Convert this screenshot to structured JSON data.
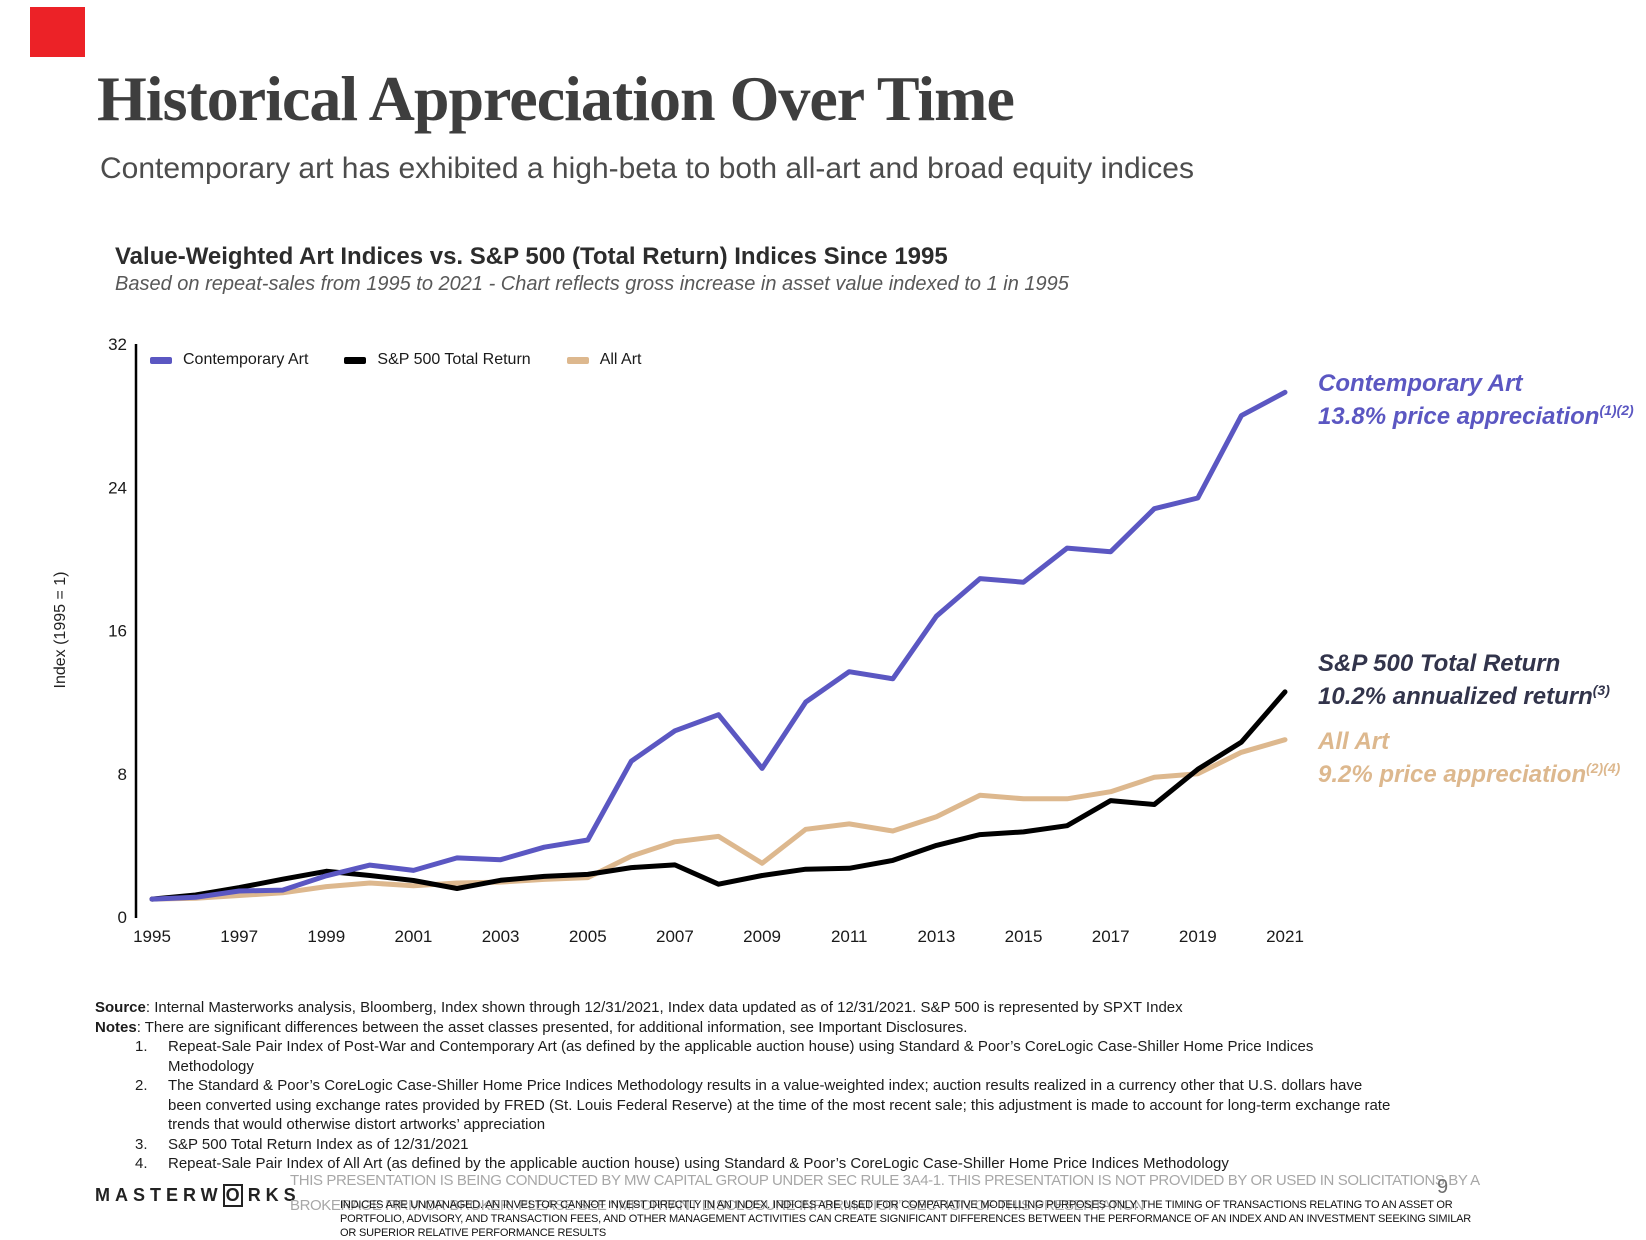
{
  "slide": {
    "title": "Historical Appreciation Over Time",
    "subtitle": "Contemporary art has exhibited a high-beta to both all-art and broad equity indices",
    "page_number": "9",
    "accent_red": "#EC2227"
  },
  "chart_header": {
    "title": "Value-Weighted Art Indices vs. S&P 500 (Total Return) Indices Since 1995",
    "subtitle": "Based on repeat-sales from 1995 to 2021 - Chart reflects gross increase in asset value indexed to 1 in 1995"
  },
  "chart_data": {
    "type": "line",
    "title": "Value-Weighted Art Indices vs. S&P 500 (Total Return) Indices Since 1995",
    "xlabel": "",
    "ylabel": "Index (1995 = 1)",
    "ylim": [
      0,
      32
    ],
    "y_ticks": [
      0,
      8,
      16,
      24,
      32
    ],
    "x_tick_years": [
      1995,
      1997,
      1999,
      2001,
      2003,
      2005,
      2007,
      2009,
      2011,
      2013,
      2015,
      2017,
      2019,
      2021
    ],
    "grid": false,
    "legend_position": "top-left",
    "x": [
      1995,
      1996,
      1997,
      1998,
      1999,
      2000,
      2001,
      2002,
      2003,
      2004,
      2005,
      2006,
      2007,
      2008,
      2009,
      2010,
      2011,
      2012,
      2013,
      2014,
      2015,
      2016,
      2017,
      2018,
      2019,
      2020,
      2021
    ],
    "series": [
      {
        "name": "Contemporary Art",
        "color": "#5B57C2",
        "values": [
          1.0,
          1.1,
          1.45,
          1.5,
          2.3,
          2.9,
          2.6,
          3.3,
          3.2,
          3.9,
          4.3,
          8.7,
          10.4,
          11.3,
          8.3,
          12.0,
          13.7,
          13.3,
          16.8,
          18.9,
          18.7,
          20.6,
          20.4,
          22.8,
          23.4,
          28.0,
          29.3
        ]
      },
      {
        "name": "S&P 500 Total Return",
        "color": "#000000",
        "values": [
          1.0,
          1.23,
          1.64,
          2.11,
          2.55,
          2.32,
          2.04,
          1.59,
          2.05,
          2.27,
          2.38,
          2.76,
          2.91,
          1.83,
          2.32,
          2.67,
          2.72,
          3.16,
          4.0,
          4.6,
          4.75,
          5.1,
          6.5,
          6.28,
          8.25,
          9.77,
          12.57
        ]
      },
      {
        "name": "All Art",
        "color": "#DDB88E",
        "values": [
          1.0,
          1.05,
          1.2,
          1.35,
          1.7,
          1.9,
          1.75,
          1.9,
          1.95,
          2.1,
          2.2,
          3.4,
          4.2,
          4.5,
          3.0,
          4.9,
          5.2,
          4.8,
          5.6,
          6.8,
          6.6,
          6.6,
          7.0,
          7.8,
          8.0,
          9.2,
          9.9
        ]
      }
    ]
  },
  "annotations": [
    {
      "line1": "Contemporary Art",
      "line2": "13.8% price appreciation",
      "sup": "(1)(2)",
      "color": "#5B57C2"
    },
    {
      "line1": "S&P 500 Total Return",
      "line2": "10.2% annualized return",
      "sup": "(3)",
      "color": "#32344B"
    },
    {
      "line1": "All Art",
      "line2": "9.2% price appreciation",
      "sup": "(2)(4)",
      "color": "#DDB88E"
    }
  ],
  "footnotes": {
    "source_label": "Source",
    "source_text": ": Internal Masterworks analysis, Bloomberg, Index shown through 12/31/2021, Index data updated as of 12/31/2021. S&P 500 is represented by SPXT Index",
    "notes_label": "Notes",
    "notes_text": ": There are significant differences between the asset classes presented, for additional information, see Important Disclosures.",
    "items": [
      {
        "num": "1.",
        "text": "Repeat-Sale Pair Index of Post-War and Contemporary Art (as defined by the applicable auction house) using Standard & Poor’s CoreLogic Case-Shiller Home Price Indices Methodology"
      },
      {
        "num": "2.",
        "text": "The Standard & Poor’s CoreLogic Case-Shiller Home Price Indices Methodology results in a value-weighted index; auction results realized in a currency other that U.S. dollars have been converted using exchange rates provided by FRED (St. Louis Federal Reserve) at the time of the most recent sale; this adjustment is made to account for long-term exchange rate trends that would otherwise distort artworks’ appreciation"
      },
      {
        "num": "3.",
        "text": "S&P 500 Total Return Index as of 12/31/2021"
      },
      {
        "num": "4.",
        "text": "Repeat-Sale Pair Index of All Art (as defined by the applicable auction house) using Standard & Poor’s CoreLogic Case-Shiller Home Price Indices Methodology"
      }
    ]
  },
  "footer": {
    "logo_pre": "MASTERW",
    "logo_o": "O",
    "logo_post": "RKS",
    "disclaimer_line1": "THIS PRESENTATION  IS BEING CONDUCTED BY MW CAPITAL GROUP UNDER SEC RULE 3A4-1. THIS PRESENTATION  IS NOT PROVIDED BY OR USED IN SOLICITATIONS BY A",
    "disclaimer_line2": "BROKERAGE FIRM OR BROKER. PLEASE SEE “IMPORTANT DISCLOSURE INFORMATION” SECTION OF THIS PRESENTATION",
    "sub_disclaimer_line1": "INDICES ARE UNMANAGED. AN INVESTOR CANNOT INVEST DIRECTLY IN AN INDEX. INDICES ARE USED FOR COMPARATIVE MODELLING PURPOSES ONLY. THE TIMING OF TRANSACTIONS RELATING TO AN ASSET OR",
    "sub_disclaimer_line2": "PORTFOLIO, ADVISORY, AND TRANSACTION FEES, AND OTHER MANAGEMENT ACTIVITIES CAN CREATE SIGNIFICANT DIFFERENCES BETWEEN THE PERFORMANCE OF AN INDEX AND AN INVESTMENT SEEKING SIMILAR",
    "sub_disclaimer_line3": "OR SUPERIOR RELATIVE PERFORMANCE RESULTS"
  }
}
